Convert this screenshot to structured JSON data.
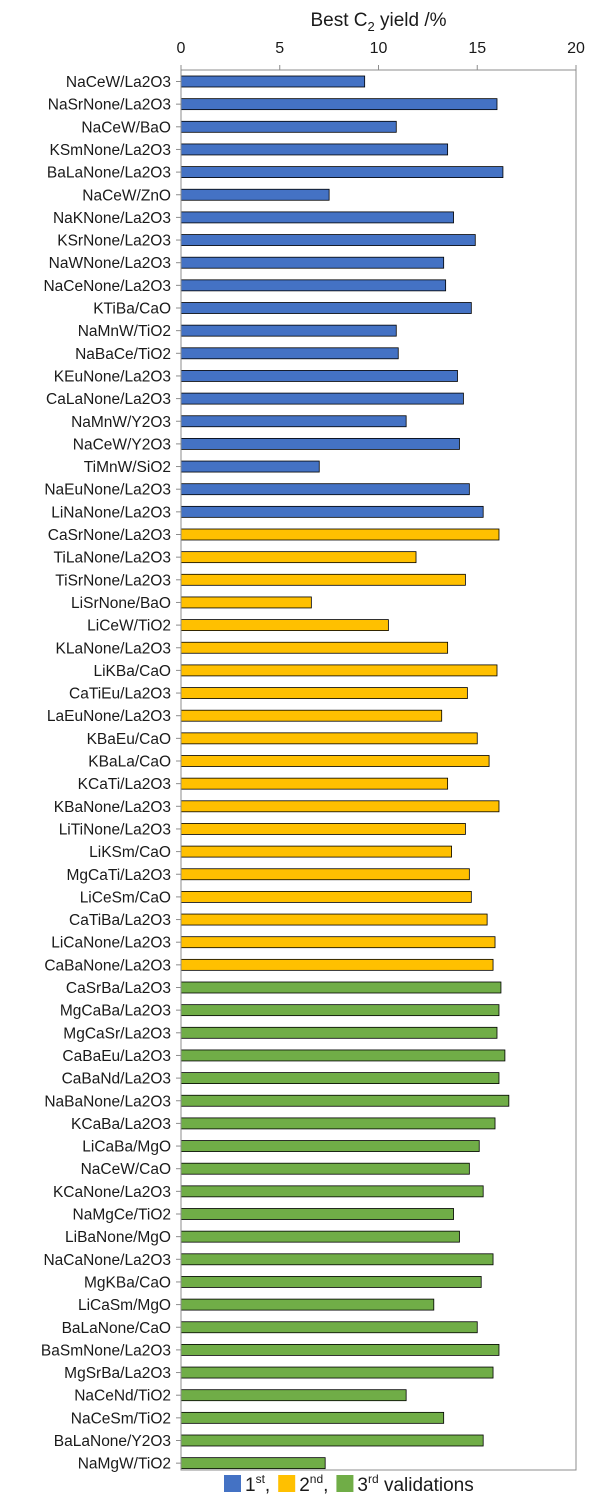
{
  "chart_data": {
    "type": "bar",
    "orientation": "horizontal",
    "title": {
      "prefix": "Best C",
      "subscript": "2",
      "suffix": " yield /%"
    },
    "xlim": [
      0,
      20
    ],
    "xticks": [
      0,
      5,
      10,
      15,
      20
    ],
    "axis_position": "top",
    "grid": false,
    "legend_placement": "bottom",
    "legend": [
      {
        "label_main": "1",
        "label_sup": "st",
        "label_after": ",",
        "color": "#4472C4"
      },
      {
        "label_main": "2",
        "label_sup": "nd",
        "label_after": ",",
        "color": "#FFC000"
      },
      {
        "label_main": "3",
        "label_sup": "rd",
        "label_after": " validations",
        "color": "#70AD47"
      }
    ],
    "series_colors": [
      "#4472C4",
      "#FFC000",
      "#70AD47"
    ],
    "categories": [
      "NaCeW/La2O3",
      "NaSrNone/La2O3",
      "NaCeW/BaO",
      "KSmNone/La2O3",
      "BaLaNone/La2O3",
      "NaCeW/ZnO",
      "NaKNone/La2O3",
      "KSrNone/La2O3",
      "NaWNone/La2O3",
      "NaCeNone/La2O3",
      "KTiBa/CaO",
      "NaMnW/TiO2",
      "NaBaCe/TiO2",
      "KEuNone/La2O3",
      "CaLaNone/La2O3",
      "NaMnW/Y2O3",
      "NaCeW/Y2O3",
      "TiMnW/SiO2",
      "NaEuNone/La2O3",
      "LiNaNone/La2O3",
      "CaSrNone/La2O3",
      "TiLaNone/La2O3",
      "TiSrNone/La2O3",
      "LiSrNone/BaO",
      "LiCeW/TiO2",
      "KLaNone/La2O3",
      "LiKBa/CaO",
      "CaTiEu/La2O3",
      "LaEuNone/La2O3",
      "KBaEu/CaO",
      "KBaLa/CaO",
      "KCaTi/La2O3",
      "KBaNone/La2O3",
      "LiTiNone/La2O3",
      "LiKSm/CaO",
      "MgCaTi/La2O3",
      "LiCeSm/CaO",
      "CaTiBa/La2O3",
      "LiCaNone/La2O3",
      "CaBaNone/La2O3",
      "CaSrBa/La2O3",
      "MgCaBa/La2O3",
      "MgCaSr/La2O3",
      "CaBaEu/La2O3",
      "CaBaNd/La2O3",
      "NaBaNone/La2O3",
      "KCaBa/La2O3",
      "LiCaBa/MgO",
      "NaCeW/CaO",
      "KCaNone/La2O3",
      "NaMgCe/TiO2",
      "LiBaNone/MgO",
      "NaCaNone/La2O3",
      "MgKBa/CaO",
      "LiCaSm/MgO",
      "BaLaNone/CaO",
      "BaSmNone/La2O3",
      "MgSrBa/La2O3",
      "NaCeNd/TiO2",
      "NaCeSm/TiO2",
      "BaLaNone/Y2O3",
      "NaMgW/TiO2"
    ],
    "values": [
      9.3,
      16.0,
      10.9,
      13.5,
      16.3,
      7.5,
      13.8,
      14.9,
      13.3,
      13.4,
      14.7,
      10.9,
      11.0,
      14.0,
      14.3,
      11.4,
      14.1,
      7.0,
      14.6,
      15.3,
      16.1,
      11.9,
      14.4,
      6.6,
      10.5,
      13.5,
      16.0,
      14.5,
      13.2,
      15.0,
      15.6,
      13.5,
      16.1,
      14.4,
      13.7,
      14.6,
      14.7,
      15.5,
      15.9,
      15.8,
      16.2,
      16.1,
      16.0,
      16.4,
      16.1,
      16.6,
      15.9,
      15.1,
      14.6,
      15.3,
      13.8,
      14.1,
      15.8,
      15.2,
      12.8,
      15.0,
      16.1,
      15.8,
      11.4,
      13.3,
      15.3,
      7.3
    ],
    "series_index": [
      0,
      0,
      0,
      0,
      0,
      0,
      0,
      0,
      0,
      0,
      0,
      0,
      0,
      0,
      0,
      0,
      0,
      0,
      0,
      0,
      1,
      1,
      1,
      1,
      1,
      1,
      1,
      1,
      1,
      1,
      1,
      1,
      1,
      1,
      1,
      1,
      1,
      1,
      1,
      1,
      2,
      2,
      2,
      2,
      2,
      2,
      2,
      2,
      2,
      2,
      2,
      2,
      2,
      2,
      2,
      2,
      2,
      2,
      2,
      2,
      2,
      2
    ]
  }
}
